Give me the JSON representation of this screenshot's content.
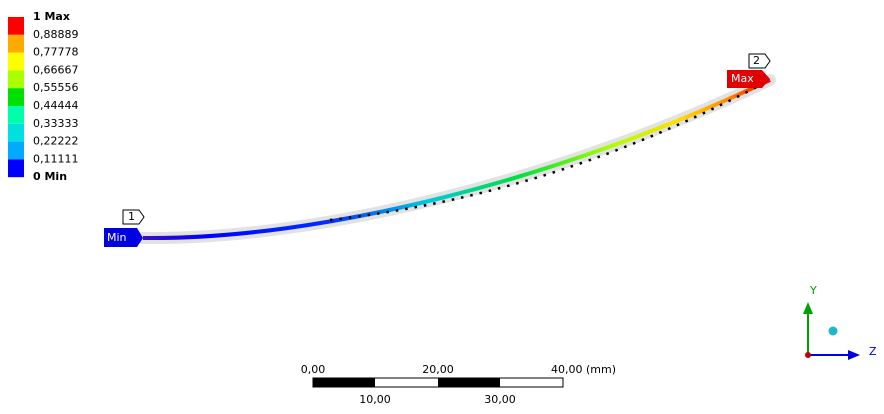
{
  "legend": {
    "labels": [
      "1 Max",
      "0,88889",
      "0,77778",
      "0,66667",
      "0,55556",
      "0,44444",
      "0,33333",
      "0,22222",
      "0,11111",
      "0 Min"
    ],
    "colors": [
      "#ff0000",
      "#ffaa00",
      "#ffff00",
      "#aaff00",
      "#00e000",
      "#00ffaa",
      "#00e0e0",
      "#00aaff",
      "#0000ff"
    ]
  },
  "probes": [
    {
      "id": "1",
      "label": "Min"
    },
    {
      "id": "2",
      "label": "Max"
    }
  ],
  "scale_bar": {
    "top_labels": [
      "0,00",
      "20,00",
      "40,00 (mm)"
    ],
    "bottom_labels": [
      "10,00",
      "30,00"
    ]
  },
  "triad": {
    "y": "Y",
    "z": "Z"
  }
}
